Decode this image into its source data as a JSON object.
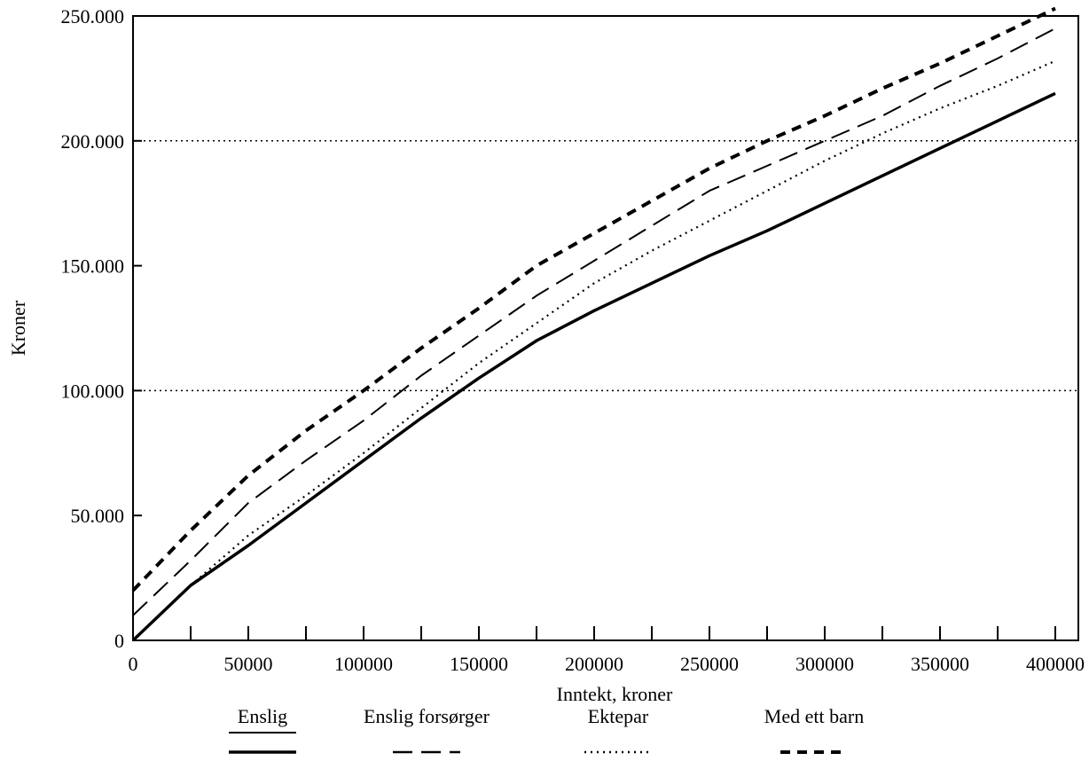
{
  "chart_data": {
    "type": "line",
    "title": "",
    "xlabel": "Inntekt, kroner",
    "ylabel": "Kroner",
    "xlim": [
      0,
      410000
    ],
    "ylim": [
      0,
      250000
    ],
    "x_ticks": [
      0,
      50000,
      100000,
      150000,
      200000,
      250000,
      300000,
      350000,
      400000
    ],
    "x_tick_labels": [
      "0",
      "50000",
      "100000",
      "150000",
      "200000",
      "250000",
      "300000",
      "350000",
      "400000"
    ],
    "x_minor_step": 25000,
    "y_ticks": [
      0,
      50000,
      100000,
      150000,
      200000,
      250000
    ],
    "y_tick_labels": [
      "0",
      "50.000",
      "100.000",
      "150.000",
      "200.000",
      "250.000"
    ],
    "gridlines_y": [
      100000,
      200000
    ],
    "legend_position": "bottom",
    "series": [
      {
        "name": "Enslig",
        "style": "solid",
        "x": [
          0,
          25000,
          50000,
          75000,
          100000,
          125000,
          150000,
          175000,
          200000,
          225000,
          250000,
          275000,
          300000,
          325000,
          350000,
          375000,
          400000
        ],
        "y": [
          0,
          22000,
          38000,
          55000,
          72000,
          89000,
          105000,
          120000,
          132000,
          143000,
          154000,
          164000,
          175000,
          186000,
          197000,
          208000,
          219000
        ]
      },
      {
        "name": "Enslig forsørger",
        "style": "long-dash",
        "x": [
          0,
          25000,
          50000,
          75000,
          100000,
          125000,
          150000,
          175000,
          200000,
          225000,
          250000,
          275000,
          300000,
          325000,
          350000,
          375000,
          400000
        ],
        "y": [
          10000,
          32000,
          55000,
          72000,
          88000,
          106000,
          122000,
          138000,
          152000,
          166000,
          180000,
          190000,
          200000,
          210000,
          222000,
          233000,
          245000
        ]
      },
      {
        "name": "Ektepar",
        "style": "dotted",
        "x": [
          25000,
          50000,
          75000,
          100000,
          125000,
          150000,
          175000,
          200000,
          225000,
          250000,
          275000,
          300000,
          325000,
          350000,
          375000,
          400000
        ],
        "y": [
          22000,
          42000,
          58000,
          75000,
          93000,
          111000,
          127000,
          143000,
          156000,
          168000,
          180000,
          192000,
          203000,
          213000,
          222000,
          232000
        ]
      },
      {
        "name": "Med ett barn",
        "style": "dashed-bold",
        "x": [
          0,
          25000,
          50000,
          75000,
          100000,
          125000,
          150000,
          175000,
          200000,
          225000,
          250000,
          275000,
          300000,
          325000,
          350000,
          375000,
          400000
        ],
        "y": [
          20000,
          44000,
          66000,
          84000,
          100000,
          117000,
          133000,
          150000,
          163000,
          176000,
          189000,
          200000,
          210000,
          221000,
          231000,
          242000,
          253000
        ]
      }
    ]
  }
}
